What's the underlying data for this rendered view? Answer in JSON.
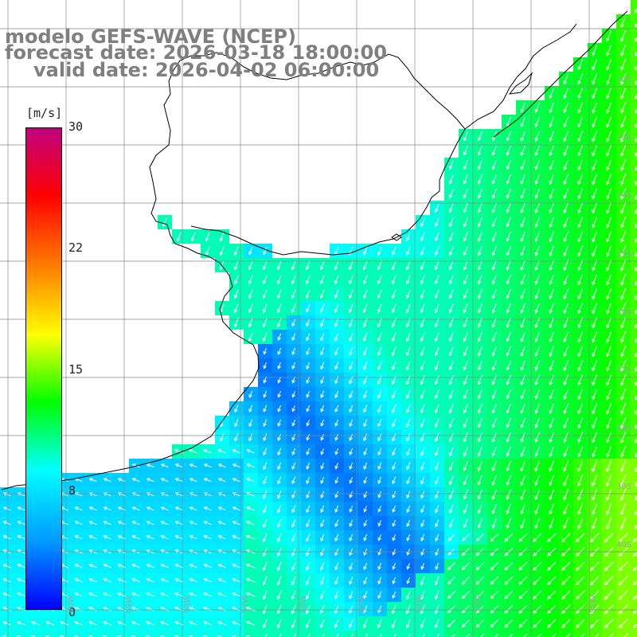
{
  "title": {
    "line1": "modelo GEFS-WAVE (NCEP)",
    "line2": "forecast date: 2026-03-18 18:00:00",
    "line3": "valid date: 2026-04-02 06:00:00"
  },
  "colorbar": {
    "unit": "[m/s]",
    "ticks": [
      "30",
      "22",
      "15",
      "8",
      "0"
    ],
    "min": 0,
    "max": 30,
    "stops": [
      "#0000ff",
      "#0099ff",
      "#00ffff",
      "#00ff00",
      "#ffff00",
      "#ff8000",
      "#ff0000",
      "#c00080"
    ]
  },
  "lat_labels": [
    "32S",
    "33S",
    "34S",
    "35S",
    "36S",
    "37S",
    "38S",
    "39S",
    "40S"
  ],
  "lon_labels": [
    "60W",
    "59W",
    "58W",
    "57W",
    "56W",
    "55W",
    "54W",
    "53W",
    "52W"
  ],
  "map_data": {
    "variable": "wind speed",
    "unit": "m/s",
    "lat_range": [
      "31S",
      "41S"
    ],
    "lon_range": [
      "61W",
      "51W"
    ],
    "region": "Rio de la Plata / Uruguay / Buenos Aires coast",
    "grid": true,
    "arrows": true
  }
}
